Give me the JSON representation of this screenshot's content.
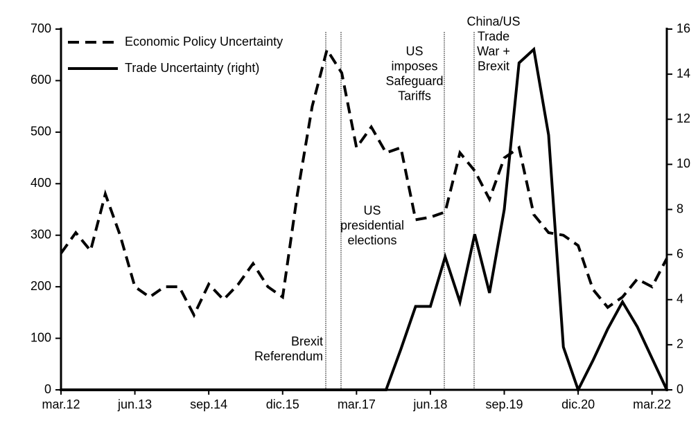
{
  "chart_data": {
    "type": "line",
    "categories": [
      "mar.12",
      null,
      null,
      null,
      null,
      "jun.13",
      null,
      null,
      null,
      null,
      "sep.14",
      null,
      null,
      null,
      null,
      "dic.15",
      null,
      null,
      null,
      null,
      "mar.17",
      null,
      null,
      null,
      null,
      "jun.18",
      null,
      null,
      null,
      null,
      "sep.19",
      null,
      null,
      null,
      null,
      "dic.20",
      null,
      null,
      null,
      null,
      "mar.22",
      null
    ],
    "series": [
      {
        "name": "Economic Policy Uncertainty",
        "color": "#000000",
        "dash": true,
        "values": [
          265,
          305,
          270,
          380,
          300,
          200,
          180,
          200,
          200,
          145,
          205,
          175,
          205,
          245,
          200,
          180,
          380,
          550,
          660,
          615,
          470,
          510,
          460,
          470,
          330,
          335,
          345,
          460,
          425,
          370,
          450,
          470,
          340,
          305,
          300,
          280,
          195,
          160,
          180,
          215,
          200,
          255
        ]
      },
      {
        "name": "Trade Uncertainty (right)",
        "color": "#000000",
        "dash": false,
        "axis": "y2",
        "values": [
          0,
          0,
          0,
          0,
          0,
          0,
          0,
          0,
          0,
          0,
          0,
          0,
          0,
          0,
          0,
          0,
          0,
          0,
          0,
          0,
          0,
          0,
          0,
          1.8,
          3.7,
          3.7,
          5.9,
          3.9,
          6.9,
          4.3,
          8,
          14.5,
          15.1,
          11.3,
          1.9,
          0,
          1.3,
          2.7,
          3.9,
          2.8,
          1.4,
          0
        ]
      }
    ],
    "ylim": [
      0,
      700
    ],
    "yticks": [
      0,
      100,
      200,
      300,
      400,
      500,
      600,
      700
    ],
    "y2lim": [
      0,
      16
    ],
    "y2ticks": [
      0,
      2,
      4,
      6,
      8,
      10,
      12,
      14,
      16
    ],
    "legend": "top-left",
    "annotations": [
      {
        "lines": [
          "Brexit",
          "Referendum"
        ]
      },
      {
        "lines": [
          "US",
          "presidential",
          "elections"
        ]
      },
      {
        "lines": [
          "US",
          "imposes",
          "Safeguard",
          "Tariffs"
        ]
      },
      {
        "lines": [
          "China/US",
          "Trade",
          "War +",
          "Brexit"
        ]
      }
    ]
  }
}
